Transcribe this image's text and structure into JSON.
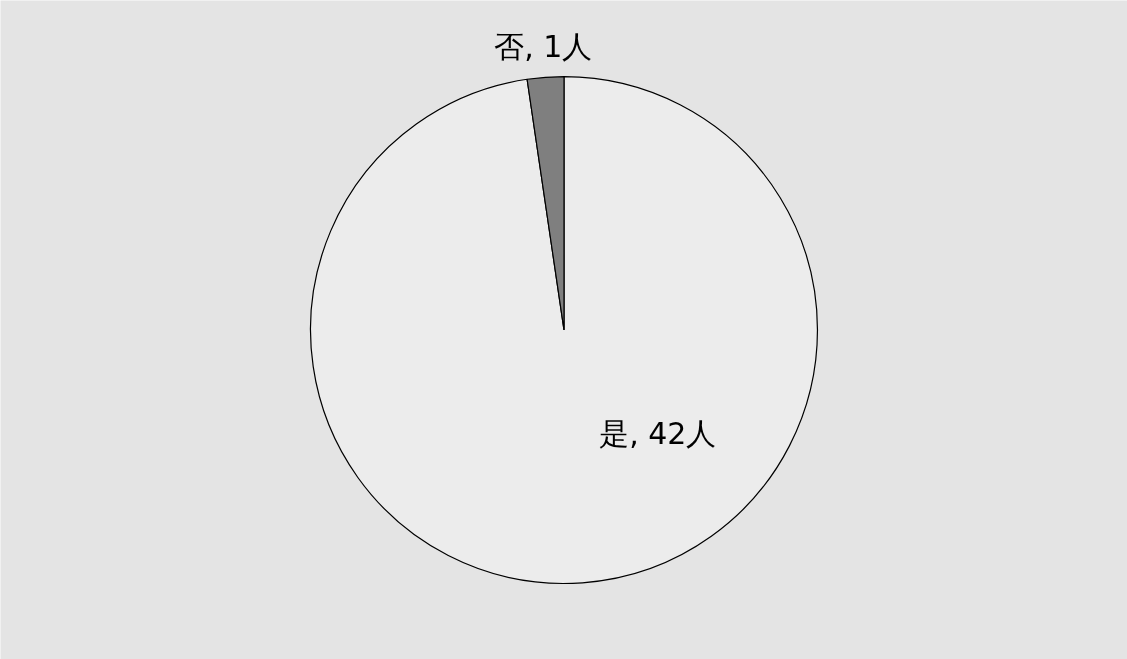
{
  "chart_data": {
    "type": "pie",
    "categories": [
      "是",
      "否"
    ],
    "values": [
      42,
      1
    ],
    "colors": [
      "#ececec",
      "#7f7f7f"
    ],
    "value_labels": [
      "42人",
      "1人"
    ]
  }
}
